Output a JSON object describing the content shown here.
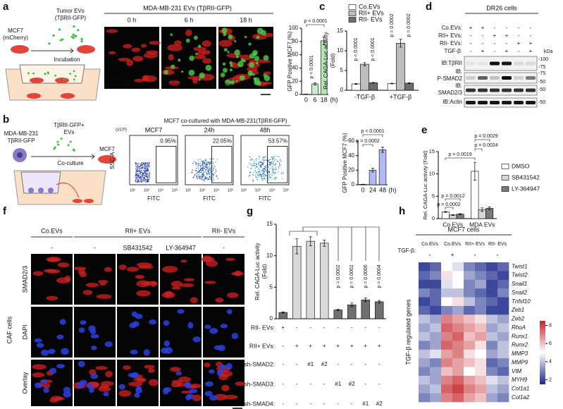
{
  "panel_labels": [
    "a",
    "b",
    "c",
    "d",
    "e",
    "f",
    "g",
    "h"
  ],
  "a_schematic": {
    "evs": [
      "Tumor EVs",
      "(TβRII-GFP)"
    ],
    "cells": [
      "MCF7",
      "(mCherry)"
    ],
    "step": "Incubation"
  },
  "a_images": {
    "title": "MDA-MB-231 EVs (TβRII-GFP)",
    "times": [
      "0 h",
      "6 h",
      "18 h"
    ],
    "captions": [
      "GFP-TβRII",
      "mCherry MCF7"
    ]
  },
  "b_schematic": {
    "donor": [
      "MDA-MB-231",
      "TβRII-GFP"
    ],
    "evs": [
      "TβRII-GFP+",
      "EVs"
    ],
    "recipient": "MCF7",
    "step": "Co-culture"
  },
  "b_flow": {
    "title": "MCF7 co-cultured with MDA-MB-231(TβRII-GFP)",
    "plots": [
      {
        "label": "MCF7",
        "gate": "0.95%"
      },
      {
        "label": "24h",
        "gate": "22.05%"
      },
      {
        "label": "48h",
        "gate": "53.57%"
      }
    ],
    "y_axis": "SSC-A",
    "y_unit": "(x10³)",
    "x_axis": "FITC",
    "x_ticks": [
      "10²",
      "10³",
      "10⁴",
      "10⁵"
    ]
  },
  "d_blot": {
    "title": "DR26 cells",
    "conditions": [
      {
        "label": "Co.EVs:",
        "lanes": [
          "+",
          "+",
          "-",
          "-",
          "-",
          "-"
        ]
      },
      {
        "label": "RII+ EVs:",
        "lanes": [
          "-",
          "-",
          "+",
          "+",
          "-",
          "-"
        ]
      },
      {
        "label": "RII- EVs:",
        "lanes": [
          "-",
          "-",
          "-",
          "-",
          "+",
          "+"
        ]
      },
      {
        "label": "TGF-β:",
        "lanes": [
          "-",
          "+",
          "-",
          "+",
          "-",
          "+"
        ]
      }
    ],
    "unit": "kDa",
    "blots": [
      {
        "label": [
          "IB:TβRII"
        ],
        "markers": [
          "-100",
          "-75"
        ]
      },
      {
        "label": [
          "IB:",
          "P-SMAD2"
        ],
        "markers": [
          "-75",
          "-50"
        ]
      },
      {
        "label": [
          "IB:",
          "SMAD2/3"
        ],
        "markers": [
          "-50"
        ]
      },
      {
        "label": [
          "IB:Actin"
        ],
        "markers": [
          "-50"
        ]
      }
    ]
  },
  "f_images": {
    "groups": [
      "Co.EVs",
      "RII+ EVs",
      "RII- EVs"
    ],
    "treatments": [
      "-",
      "-",
      "SB431542",
      "LY-364947",
      "-"
    ],
    "channels": [
      "SMAD2/3",
      "DAPI",
      "Overlay"
    ],
    "cell_label": "CAF cells"
  },
  "chart_data": [
    {
      "type": "bar",
      "ylabel": "GFP Positive MCF7 (%)",
      "xlabel": "(h)",
      "categories": [
        "0",
        "6",
        "18"
      ],
      "values": [
        0.4,
        16,
        81
      ],
      "errors": [
        0.3,
        1.5,
        6
      ],
      "colors": [
        "#ffffff",
        "#c9ecc9",
        "#b5e4b5"
      ],
      "ylim": [
        0,
        100
      ],
      "yticks": [
        0,
        20,
        40,
        60,
        80,
        100
      ],
      "annotations": [
        "p < 0.0001",
        "p < 0.0001"
      ]
    },
    {
      "type": "bar",
      "ylabel": [
        "Rel. CAGA-Luc activity",
        "(Fold)"
      ],
      "categories": [
        "-TGF-β",
        "+TGF-β"
      ],
      "series": [
        {
          "name": "Co.EVs",
          "color": "#ffffff",
          "values": [
            1.6,
            1.7
          ],
          "errors": [
            0.1,
            0.1
          ]
        },
        {
          "name": "RII+ EVs",
          "color": "#bdbdbd",
          "values": [
            6.6,
            11.9
          ],
          "errors": [
            0.4,
            1.0
          ]
        },
        {
          "name": "RII- EVs",
          "color": "#6e6e6e",
          "values": [
            1.9,
            1.8
          ],
          "errors": [
            0.1,
            0.1
          ]
        }
      ],
      "ylim": [
        0,
        15
      ],
      "yticks": [
        0,
        5,
        10,
        15
      ],
      "annotations": [
        "p < 0.0001",
        "p < 0.0001",
        "p = 0.0002",
        "p = 0.0002"
      ]
    },
    {
      "type": "bar",
      "ylabel": "GFP Positive MCF7 (%)",
      "xlabel": "(h)",
      "categories": [
        "0",
        "24",
        "48"
      ],
      "values": [
        0.5,
        20,
        48
      ],
      "errors": [
        0.3,
        2.5,
        3.5
      ],
      "color": "#b3b9f2",
      "ylim": [
        0,
        60
      ],
      "yticks": [
        0,
        20,
        40,
        60
      ],
      "annotations": [
        "p < 0.0001",
        "p = 0.0002"
      ]
    },
    {
      "type": "bar",
      "ylabel": "Rel. CAGA-Luc activity (Fold)",
      "categories": [
        "Co.EVs",
        "MDA EVs"
      ],
      "series": [
        {
          "name": "DMSO",
          "color": "#ffffff",
          "values": [
            1.5,
            10.6
          ],
          "errors": [
            0.1,
            2.0
          ]
        },
        {
          "name": "SB431542",
          "color": "#d6d6d6",
          "values": [
            0.8,
            2.0
          ],
          "errors": [
            0.1,
            0.4
          ]
        },
        {
          "name": "LY-364947",
          "color": "#7a7a7a",
          "values": [
            1.0,
            2.3
          ],
          "errors": [
            0.1,
            0.3
          ]
        }
      ],
      "ylim": [
        0,
        15
      ],
      "yticks": [
        0,
        5,
        10,
        15
      ],
      "annotations": [
        "p = 0.0029",
        "p = 0.0024",
        "p = 0.0019",
        "p = 0.0012",
        "p = 0.0002"
      ]
    },
    {
      "type": "bar",
      "ylabel": [
        "Rel. CAGA-Luc activity",
        "(Fold)"
      ],
      "values": [
        1.0,
        11.5,
        12.3,
        12.0,
        1.4,
        2.2,
        3.0,
        2.7
      ],
      "errors": [
        0.1,
        1.2,
        0.7,
        0.5,
        0.1,
        0.3,
        0.3,
        0.2
      ],
      "colors": [
        "#707070",
        "#d9d9d9",
        "#d9d9d9",
        "#d9d9d9",
        "#707070",
        "#707070",
        "#707070",
        "#707070"
      ],
      "ylim": [
        0,
        15
      ],
      "yticks": [
        0,
        5,
        10,
        15
      ],
      "annotations": [
        "p = 0.0002",
        "p = 0.0002",
        "p = 0.0006",
        "p = 0.0004"
      ],
      "condition_table": [
        {
          "label": "RII- EVs:",
          "values": [
            "+",
            "-",
            "-",
            "-",
            "-",
            "-",
            "-",
            "-"
          ]
        },
        {
          "label": "RII+ EVs:",
          "values": [
            "-",
            "+",
            "+",
            "+",
            "+",
            "+",
            "+",
            "+"
          ]
        },
        {
          "label": "sh-SMAD2:",
          "values": [
            "-",
            "-",
            "#1",
            "#2",
            "-",
            "-",
            "-",
            "-"
          ]
        },
        {
          "label": "sh-SMAD3:",
          "values": [
            "-",
            "-",
            "-",
            "-",
            "#1",
            "#2",
            "-",
            "-"
          ]
        },
        {
          "label": "sh-SMAD4:",
          "values": [
            "-",
            "-",
            "-",
            "-",
            "-",
            "-",
            "#1",
            "#2"
          ]
        }
      ]
    },
    {
      "type": "heatmap",
      "title": "MCF7 cells",
      "ylabel": "TGF-β regulated genes",
      "tgf_label": "TGF-β:",
      "column_groups": [
        {
          "label": "Co.EVs",
          "tgf": "-"
        },
        {
          "label": "Co.EVs",
          "tgf": "+"
        },
        {
          "label": "RII+ EVs",
          "tgf": "-"
        },
        {
          "label": "RII- EVs",
          "tgf": "-"
        }
      ],
      "rows": [
        "Twist1",
        "Twist2",
        "Snail1",
        "Snail2",
        "Tnfsf10",
        "Zeb1",
        "Zeb2",
        "RhoA",
        "Runx1",
        "Runx2",
        "MMP3",
        "MMP9",
        "VIM",
        "MYH9",
        "Col1a1",
        "Col1a2"
      ],
      "values": [
        [
          2,
          2.5,
          5,
          4.5,
          3,
          2.5,
          2,
          2.5
        ],
        [
          2.5,
          3,
          5.5,
          5,
          3.5,
          3,
          2.5,
          2
        ],
        [
          2,
          2,
          4.5,
          5,
          3,
          3.5,
          2,
          2.5
        ],
        [
          3,
          2.5,
          4,
          4,
          3,
          2.5,
          2,
          3
        ],
        [
          2,
          2.5,
          5,
          5.5,
          4,
          3,
          2.5,
          2
        ],
        [
          2.5,
          2,
          3,
          3.5,
          2.5,
          3,
          2,
          2
        ],
        [
          4,
          3.5,
          7,
          6.5,
          6,
          5.5,
          4,
          3.5
        ],
        [
          3.5,
          4,
          7.5,
          7,
          6.5,
          6,
          3.5,
          4
        ],
        [
          4,
          3.5,
          7,
          7.5,
          6,
          6.5,
          4,
          3.5
        ],
        [
          3,
          3.5,
          7.5,
          7,
          6.5,
          5.5,
          3,
          4
        ],
        [
          4,
          4.5,
          6.5,
          7,
          5.5,
          5,
          3.5,
          4
        ],
        [
          3.5,
          3,
          7,
          6.5,
          6,
          5.5,
          2.5,
          3
        ],
        [
          3,
          3.5,
          6,
          6.5,
          5,
          5.5,
          3,
          2.5
        ],
        [
          4,
          3.5,
          7,
          7.5,
          6.5,
          6,
          4.5,
          4
        ],
        [
          3.5,
          4,
          7.5,
          8,
          7,
          6.5,
          4,
          3.5
        ],
        [
          3,
          3.5,
          7,
          7.5,
          6.5,
          6,
          3.5,
          3
        ]
      ],
      "zlim": [
        1.5,
        8.5
      ],
      "zticks": [
        2,
        4,
        6,
        8
      ]
    }
  ]
}
